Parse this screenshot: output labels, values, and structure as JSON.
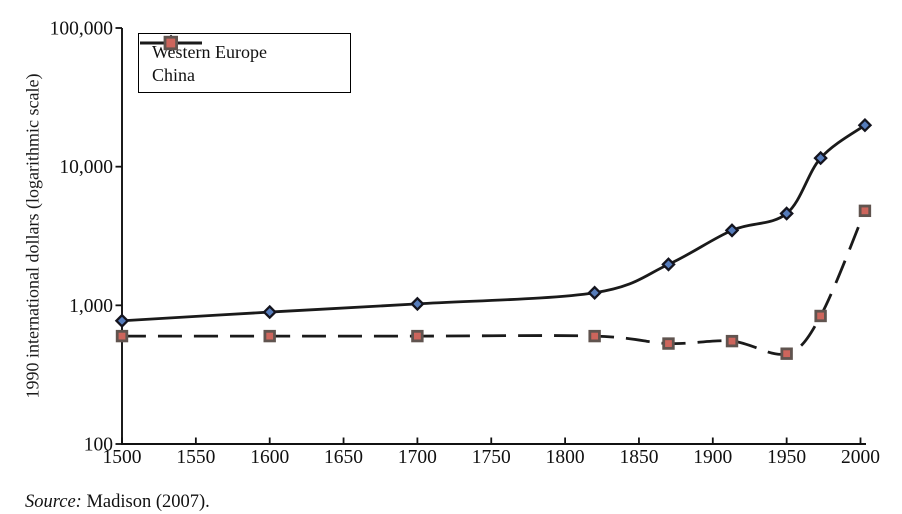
{
  "chart_data": {
    "type": "line",
    "title": "",
    "xlabel": "",
    "ylabel": "1990 international dollars (logarithmic scale)",
    "y_scale": "log",
    "ylim": [
      100,
      100000
    ],
    "xlim": [
      1500,
      2003
    ],
    "grid": false,
    "legend_position": "top-left",
    "axis_color": "#111111",
    "x": [
      1500,
      1600,
      1700,
      1820,
      1870,
      1913,
      1950,
      1973,
      2003
    ],
    "series": [
      {
        "name": "Western Europe",
        "values": [
          774,
          894,
          1024,
          1232,
          1974,
          3473,
          4594,
          11534,
          19912
        ],
        "line_style": "solid",
        "line_color": "#1a1a1a",
        "marker": "diamond",
        "marker_fill": "#567cbb",
        "marker_stroke": "#14141e"
      },
      {
        "name": "China",
        "values": [
          600,
          600,
          600,
          600,
          530,
          552,
          448,
          838,
          4803
        ],
        "line_style": "dashed",
        "line_color": "#1a1a1a",
        "marker": "square",
        "marker_fill": "#cd655c",
        "marker_stroke": "#60544f"
      }
    ],
    "x_tick_values": [
      1500,
      1550,
      1600,
      1650,
      1700,
      1750,
      1800,
      1850,
      1900,
      1950,
      2000
    ],
    "x_tick_labels": [
      "1500",
      "1550",
      "1600",
      "1650",
      "1700",
      "1750",
      "1800",
      "1850",
      "1900",
      "1950",
      "2000"
    ],
    "y_tick_values": [
      100,
      1000,
      10000,
      100000
    ],
    "y_tick_labels": [
      "100",
      "1,000",
      "10,000",
      "100,000"
    ]
  },
  "source": {
    "label": "Source:",
    "text": "Madison (2007)."
  }
}
